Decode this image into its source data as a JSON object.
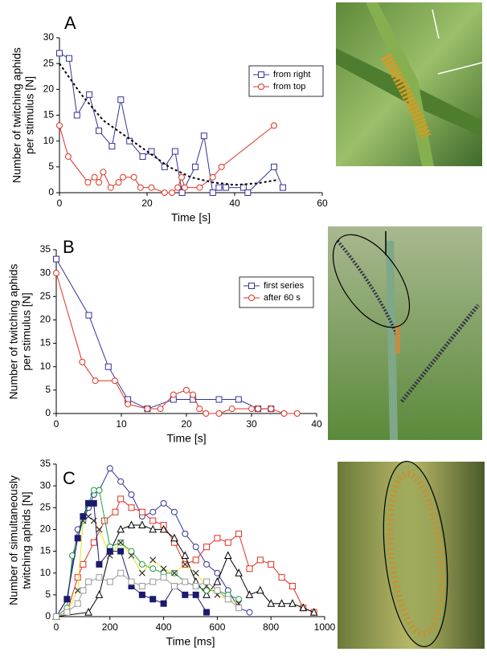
{
  "chart_data": [
    {
      "type": "line",
      "panel": "A",
      "xlabel": "Time [s]",
      "ylabel": [
        "Number of twitching aphids",
        "per stimulus [N]"
      ],
      "xlim": [
        0,
        60
      ],
      "xticks": [
        0,
        20,
        40,
        60
      ],
      "ylim": [
        0,
        30
      ],
      "yticks": [
        0,
        5,
        10,
        15,
        20,
        25,
        30
      ],
      "legend": "upper right",
      "series": [
        {
          "name": "from right",
          "color": "#333399",
          "marker": "square",
          "x": [
            0,
            2.2,
            4,
            6.8,
            9,
            12,
            14,
            16,
            19,
            21,
            24,
            26.4,
            28,
            31,
            33,
            35,
            36.4,
            38,
            42,
            43,
            49,
            51
          ],
          "values": [
            27,
            26,
            15,
            19,
            12,
            9,
            18,
            10,
            7,
            8,
            5,
            8,
            0,
            5,
            11,
            0,
            1,
            1,
            1,
            0,
            5,
            1
          ]
        },
        {
          "name": "from top",
          "color": "#e03020",
          "marker": "circle",
          "x": [
            0,
            2,
            6.5,
            8,
            9,
            10,
            11.7,
            13.5,
            14.5,
            17,
            18.5,
            21,
            24,
            25.7,
            27,
            27.9,
            28.6,
            32,
            35,
            37,
            49
          ],
          "values": [
            13,
            7,
            2,
            3,
            2,
            4,
            1,
            2,
            3,
            3,
            1,
            1,
            0,
            0,
            1,
            3,
            1,
            1,
            3,
            5,
            13
          ]
        },
        {
          "color": "#000000",
          "marker": "none",
          "dash": true,
          "x": [
            0,
            5,
            10,
            15,
            20,
            25,
            30,
            35,
            40,
            45,
            50
          ],
          "values": [
            25,
            19,
            14,
            11,
            8,
            5,
            3,
            2,
            1.5,
            1.8,
            2.5
          ]
        }
      ]
    },
    {
      "type": "line",
      "panel": "B",
      "xlabel": "Time [s]",
      "ylabel": [
        "Number of twitching aphids",
        "per stimulus [N]"
      ],
      "xlim": [
        0,
        40
      ],
      "xticks": [
        0,
        10,
        20,
        30,
        40
      ],
      "ylim": [
        0,
        35
      ],
      "yticks": [
        0,
        5,
        10,
        15,
        20,
        25,
        30,
        35
      ],
      "legend": "upper right",
      "series": [
        {
          "name": "first series",
          "color": "#333399",
          "marker": "square",
          "x": [
            0,
            5,
            8,
            11,
            14,
            18,
            21,
            25,
            28,
            31,
            33
          ],
          "values": [
            33,
            21,
            10,
            3,
            1,
            3,
            3,
            3,
            3,
            1,
            1
          ]
        },
        {
          "name": "after 60 s",
          "color": "#e03020",
          "marker": "circle",
          "x": [
            0,
            4,
            6,
            9,
            11,
            14,
            16,
            18,
            20,
            21,
            22,
            23,
            25,
            27,
            30,
            31,
            33,
            35,
            37
          ],
          "values": [
            30,
            11,
            7,
            7,
            2,
            1,
            1,
            4,
            5,
            4,
            1,
            0,
            0,
            1,
            1,
            1,
            1,
            0,
            0
          ]
        }
      ]
    },
    {
      "type": "line",
      "panel": "C",
      "xlabel": "Time [ms]",
      "ylabel": [
        "Number of simultaneously",
        "twitching aphids [N]"
      ],
      "xlim": [
        0,
        1000
      ],
      "xticks": [
        0,
        200,
        400,
        600,
        800,
        1000
      ],
      "ylim": [
        0,
        35
      ],
      "yticks": [
        0,
        5,
        10,
        15,
        20,
        25,
        30,
        35
      ],
      "series": [
        {
          "color": "#333399",
          "marker": "circle",
          "x": [
            0,
            40,
            80,
            100,
            120,
            140,
            160,
            200,
            240,
            280,
            320,
            360,
            400,
            440,
            480,
            520,
            560,
            600,
            640,
            680,
            720
          ],
          "values": [
            0,
            4,
            20,
            22,
            25,
            28,
            29,
            34,
            31,
            28,
            23,
            24,
            26,
            24,
            19,
            16,
            12,
            10,
            6,
            2,
            1
          ]
        },
        {
          "color": "#e03020",
          "marker": "square",
          "x": [
            0,
            40,
            80,
            100,
            140,
            180,
            220,
            240,
            280,
            320,
            360,
            400,
            440,
            480,
            520,
            560,
            600,
            640,
            680,
            720,
            760,
            800,
            840,
            880,
            920,
            960
          ],
          "values": [
            0,
            1,
            9,
            12,
            17,
            22,
            24,
            27,
            25,
            24,
            22,
            21,
            17,
            12,
            13,
            16,
            18,
            17,
            19,
            11,
            13,
            12,
            9,
            7,
            2,
            1
          ]
        },
        {
          "color": "#000000",
          "marker": "triangle",
          "x": [
            0,
            120,
            160,
            200,
            240,
            280,
            320,
            360,
            400,
            440,
            480,
            520,
            560,
            600,
            640,
            680,
            720,
            760,
            800,
            840,
            880,
            920,
            960
          ],
          "values": [
            0,
            1,
            5,
            15,
            20,
            21,
            21,
            20,
            20,
            18,
            14,
            8,
            5,
            8,
            14,
            10,
            5,
            6,
            3,
            3,
            3,
            2,
            1
          ]
        },
        {
          "color": "#20a040",
          "marker": "circle",
          "x": [
            0,
            40,
            60,
            100,
            120,
            140,
            160,
            200,
            240,
            280,
            320,
            360,
            400,
            440,
            480,
            520,
            560,
            600,
            640,
            680
          ],
          "values": [
            0,
            2,
            14,
            22,
            26,
            29,
            29,
            16,
            17,
            15,
            12,
            11,
            10,
            10,
            8,
            7,
            6,
            6,
            5,
            4
          ]
        },
        {
          "color": "#e8e020",
          "marker": "x",
          "x": [
            0,
            40,
            80,
            100,
            120,
            140,
            160,
            200,
            240,
            280,
            320,
            360,
            400,
            440,
            480,
            520,
            560,
            600,
            640,
            680
          ],
          "values": [
            0,
            1,
            6,
            22,
            23,
            22,
            20,
            14,
            17,
            14,
            10,
            13,
            11,
            10,
            12,
            10,
            7,
            5,
            4,
            3
          ]
        },
        {
          "color": "#1a1a6e",
          "marker": "filledsquare",
          "x": [
            0,
            40,
            80,
            100,
            120,
            140,
            160,
            200,
            240,
            280,
            320,
            360,
            400,
            440,
            480,
            520,
            560
          ],
          "values": [
            0,
            4,
            18,
            23,
            26,
            26,
            12,
            15,
            15,
            7,
            5,
            4,
            3,
            7,
            5,
            5,
            1
          ]
        },
        {
          "color": "#999999",
          "marker": "square",
          "x": [
            0,
            40,
            80,
            100,
            120,
            160,
            200,
            240,
            280,
            320,
            360,
            400,
            440,
            480,
            520,
            560,
            600,
            640,
            680
          ],
          "values": [
            0,
            1,
            3,
            6,
            8,
            9,
            8,
            10,
            8,
            7,
            8,
            9,
            7,
            8,
            7,
            8,
            6,
            4,
            2
          ]
        }
      ]
    }
  ]
}
